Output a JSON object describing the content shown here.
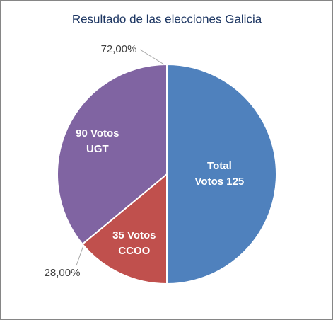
{
  "chart_data": {
    "type": "pie",
    "title": "Resultado de las elecciones Galicia",
    "values": [
      125,
      35,
      90
    ],
    "value_labels": [
      [
        "Total",
        "Votos 125"
      ],
      [
        "35 Votos",
        "CCOO"
      ],
      [
        "90 Votos",
        "UGT"
      ]
    ],
    "colors": [
      "#4f81bd",
      "#c0504d",
      "#8064a2"
    ],
    "outer_labels": [
      {
        "value": 72,
        "label": "72,00%"
      },
      {
        "value": 28,
        "label": "28,00%"
      }
    ]
  }
}
